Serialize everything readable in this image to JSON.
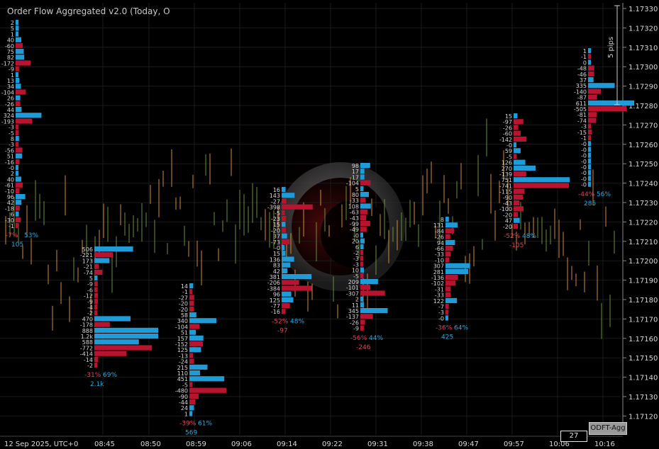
{
  "title": "Order Flow Aggregated v2.0 (Today, O",
  "pips_label": "5 pips",
  "badge_label": "ODFT-Agg",
  "counter_value": "27",
  "colors": {
    "bg": "#000000",
    "grid": "#1a1a1a",
    "buy": "#1f9bd7",
    "sell": "#b8132f",
    "wick_up": "#6a8f3a",
    "wick_down": "#d08a3a",
    "text": "#d8d8d8",
    "pct_neg": "#e0445a",
    "pct_pos": "#2fa8e0"
  },
  "y_axis": {
    "ticks": [
      "1.17330",
      "1.17320",
      "1.17310",
      "1.17300",
      "1.17290",
      "1.17280",
      "1.17270",
      "1.17260",
      "1.17250",
      "1.17240",
      "1.17230",
      "1.17220",
      "1.17210",
      "1.17200",
      "1.17190",
      "1.17180",
      "1.17170",
      "1.17160",
      "1.17150",
      "1.17140",
      "1.17130",
      "1.17120"
    ]
  },
  "x_axis": {
    "labels": [
      "12 Sep 2025, UTC+0",
      "08:45",
      "08:50",
      "08:59",
      "09:06",
      "09:14",
      "09:22",
      "09:31",
      "09:38",
      "09:47",
      "09:57",
      "10:06",
      "10:16"
    ]
  },
  "clusters": [
    {
      "id": "c1",
      "values": [
        "2",
        "5",
        "1",
        "40",
        "-60",
        "75",
        "82",
        "-172",
        "-9",
        "1",
        "13",
        "34",
        "-104",
        "26",
        "-26",
        "44",
        "324",
        "-193",
        "-3",
        "-5",
        "8",
        "-3",
        "-56",
        "51",
        "-16",
        "-0",
        "2",
        "40",
        "-61",
        "-10",
        "96",
        "42",
        "-18",
        "6",
        "-30",
        "-1"
      ],
      "pct": "-7%",
      "pct2": "53%",
      "vol": "105"
    },
    {
      "id": "c2",
      "values": [
        "506",
        "-221",
        "173",
        "-21",
        "-74",
        "5",
        "-9",
        "-6",
        "-12",
        "-9",
        "-4",
        "-2",
        "470",
        "-178",
        "888",
        "1.2k",
        "588",
        "-772",
        "-414",
        "-14",
        "-2"
      ],
      "pct": "-31%",
      "pct2": "69%",
      "vol": "2.1k"
    },
    {
      "id": "c3",
      "values": [
        "14",
        "-1",
        "-27",
        "-20",
        "-20",
        "58",
        "340",
        "-104",
        "51",
        "157",
        "-152",
        "125",
        "-13",
        "-24",
        "215",
        "110",
        "451",
        "-5",
        "-480",
        "-90",
        "-44",
        "24",
        "1"
      ],
      "pct": "-39%",
      "pct2": "61%",
      "vol": "569"
    },
    {
      "id": "c4",
      "values": [
        "16",
        "143",
        "-27",
        "-398",
        "-5",
        "-23",
        "15",
        "-20",
        "37",
        "-73",
        "-0",
        "15",
        "136",
        "83",
        "42",
        "381",
        "-206",
        "-384",
        "96",
        "125",
        "-77",
        "-16"
      ],
      "pct": "-52%",
      "pct2": "48%",
      "vol": "-97"
    },
    {
      "id": "c5",
      "values": [
        "98",
        "17",
        "17",
        "-104",
        "5",
        "80",
        "-33",
        "108",
        "-63",
        "-43",
        "-99",
        "-49",
        "-0",
        "20",
        "6",
        "-2",
        "-3",
        "-3",
        "10",
        "-5",
        "209",
        "-101",
        "-307",
        "2",
        "11",
        "345",
        "-137",
        "-26",
        "-9"
      ],
      "pct": "-56%",
      "pct2": "44%",
      "vol": "-246"
    },
    {
      "id": "c6",
      "values": [
        "8",
        "131",
        "-84",
        "-26",
        "94",
        "-66",
        "-33",
        "-10",
        "307",
        "281",
        "-136",
        "-102",
        "-31",
        "-33",
        "122",
        "-7",
        "-3",
        "-0"
      ],
      "pct": "-36%",
      "pct2": "64%",
      "vol": "425"
    },
    {
      "id": "c7",
      "values": [
        "15",
        "-97",
        "-26",
        "-60",
        "-142",
        "-0",
        "59",
        "-5",
        "126",
        "270",
        "-139",
        "751",
        "-741",
        "-115",
        "-90",
        "-43",
        "-100",
        "-20",
        "47",
        "-20"
      ],
      "pct": "-52%",
      "pct2": "48%",
      "vol": "-105"
    },
    {
      "id": "c8",
      "values": [
        "1",
        "-1",
        "0",
        "-48",
        "-46",
        "37",
        "335",
        "-140",
        "-87",
        "611",
        "-505",
        "-81",
        "-74",
        "-3",
        "-15",
        "-1",
        "-0",
        "-0",
        "-0",
        "-0",
        "-0",
        "-0",
        "-0",
        "-0"
      ],
      "pct": "-44%",
      "pct2": "56%",
      "vol": "285"
    }
  ]
}
